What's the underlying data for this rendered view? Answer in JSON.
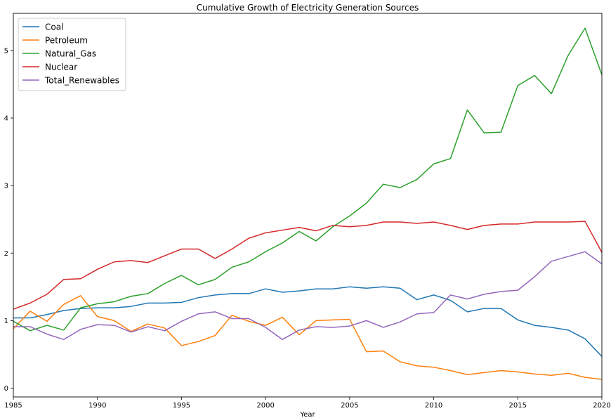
{
  "chart_data": {
    "type": "line",
    "title": "Cumulative Growth of Electricity Generation Sources",
    "xlabel": "Year",
    "ylabel": "",
    "xlim": [
      1985,
      2020
    ],
    "ylim": [
      -0.13,
      5.55
    ],
    "xticks": [
      1985,
      1990,
      1995,
      2000,
      2005,
      2010,
      2015,
      2020
    ],
    "yticks": [
      0,
      1,
      2,
      3,
      4,
      5
    ],
    "grid": false,
    "legend_position": "top-left",
    "x": [
      1985,
      1986,
      1987,
      1988,
      1989,
      1990,
      1991,
      1992,
      1993,
      1994,
      1995,
      1996,
      1997,
      1998,
      1999,
      2000,
      2001,
      2002,
      2003,
      2004,
      2005,
      2006,
      2007,
      2008,
      2009,
      2010,
      2011,
      2012,
      2013,
      2014,
      2015,
      2016,
      2017,
      2018,
      2019,
      2020
    ],
    "series": [
      {
        "name": "Coal",
        "color": "#1f77b4",
        "values": [
          1.04,
          1.04,
          1.09,
          1.15,
          1.18,
          1.19,
          1.19,
          1.21,
          1.26,
          1.26,
          1.27,
          1.34,
          1.38,
          1.4,
          1.4,
          1.47,
          1.42,
          1.44,
          1.47,
          1.47,
          1.5,
          1.48,
          1.5,
          1.48,
          1.31,
          1.38,
          1.3,
          1.13,
          1.18,
          1.18,
          1.01,
          0.93,
          0.9,
          0.86,
          0.73,
          0.47
        ]
      },
      {
        "name": "Petroleum",
        "color": "#ff7f0e",
        "values": [
          0.88,
          1.14,
          0.99,
          1.24,
          1.37,
          1.06,
          1.0,
          0.84,
          0.95,
          0.89,
          0.63,
          0.69,
          0.78,
          1.08,
          0.99,
          0.93,
          1.05,
          0.79,
          1.0,
          1.01,
          1.02,
          0.54,
          0.55,
          0.39,
          0.33,
          0.31,
          0.26,
          0.2,
          0.23,
          0.26,
          0.24,
          0.21,
          0.19,
          0.22,
          0.16,
          0.13
        ]
      },
      {
        "name": "Natural_Gas",
        "color": "#2ca02c",
        "values": [
          0.99,
          0.85,
          0.93,
          0.86,
          1.19,
          1.25,
          1.28,
          1.36,
          1.4,
          1.55,
          1.67,
          1.53,
          1.61,
          1.79,
          1.87,
          2.02,
          2.15,
          2.32,
          2.18,
          2.39,
          2.55,
          2.74,
          3.02,
          2.97,
          3.09,
          3.32,
          3.4,
          4.12,
          3.78,
          3.79,
          4.48,
          4.63,
          4.36,
          4.93,
          5.33,
          4.64
        ]
      },
      {
        "name": "Nuclear",
        "color": "#d62728",
        "values": [
          1.17,
          1.26,
          1.39,
          1.61,
          1.62,
          1.76,
          1.87,
          1.89,
          1.86,
          1.96,
          2.06,
          2.06,
          1.92,
          2.06,
          2.22,
          2.3,
          2.34,
          2.38,
          2.33,
          2.41,
          2.39,
          2.41,
          2.46,
          2.46,
          2.44,
          2.46,
          2.41,
          2.35,
          2.41,
          2.43,
          2.43,
          2.46,
          2.46,
          2.46,
          2.47,
          2.01
        ]
      },
      {
        "name": "Total_Renewables",
        "color": "#9467bd",
        "values": [
          0.91,
          0.91,
          0.8,
          0.72,
          0.87,
          0.94,
          0.93,
          0.83,
          0.91,
          0.85,
          0.99,
          1.1,
          1.13,
          1.03,
          1.03,
          0.9,
          0.72,
          0.86,
          0.91,
          0.9,
          0.92,
          1.0,
          0.9,
          0.98,
          1.1,
          1.12,
          1.38,
          1.32,
          1.39,
          1.43,
          1.45,
          1.65,
          1.88,
          1.95,
          2.02,
          1.84
        ]
      }
    ]
  }
}
